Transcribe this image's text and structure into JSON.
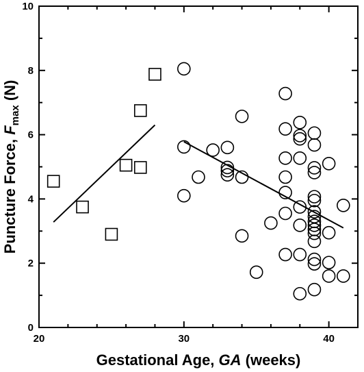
{
  "chart_data": {
    "type": "scatter",
    "title": "",
    "xlabel": {
      "prefix": "Gestational Age, ",
      "var": "GA",
      "suffix": " (weeks)"
    },
    "ylabel": {
      "prefix": "Puncture Force, ",
      "var": "F",
      "sub": "max",
      "suffix": " (N)"
    },
    "xlim": [
      20,
      42
    ],
    "ylim": [
      0,
      10
    ],
    "xticks": [
      20,
      30,
      40
    ],
    "yticks": [
      0,
      2,
      4,
      6,
      8,
      10
    ],
    "grid": false,
    "series": [
      {
        "marker": "square",
        "points": [
          [
            21,
            4.55
          ],
          [
            23,
            3.75
          ],
          [
            25,
            2.9
          ],
          [
            26,
            5.05
          ],
          [
            27,
            4.98
          ],
          [
            27,
            6.75
          ],
          [
            28,
            7.88
          ]
        ],
        "fit": [
          [
            21,
            3.28
          ],
          [
            28,
            6.3
          ]
        ]
      },
      {
        "marker": "circle",
        "points": [
          [
            30,
            8.05
          ],
          [
            30,
            5.62
          ],
          [
            30,
            4.1
          ],
          [
            31,
            4.68
          ],
          [
            32,
            5.52
          ],
          [
            33,
            5.6
          ],
          [
            33,
            4.98
          ],
          [
            33,
            4.88
          ],
          [
            33,
            4.75
          ],
          [
            34,
            6.57
          ],
          [
            34,
            4.68
          ],
          [
            34,
            2.85
          ],
          [
            35,
            1.72
          ],
          [
            36,
            3.25
          ],
          [
            37,
            7.28
          ],
          [
            37,
            6.18
          ],
          [
            37,
            5.27
          ],
          [
            37,
            4.68
          ],
          [
            37,
            4.2
          ],
          [
            37,
            3.55
          ],
          [
            37,
            2.27
          ],
          [
            38,
            6.38
          ],
          [
            38,
            5.97
          ],
          [
            38,
            5.87
          ],
          [
            38,
            5.27
          ],
          [
            38,
            3.75
          ],
          [
            38,
            3.18
          ],
          [
            38,
            2.27
          ],
          [
            38,
            1.05
          ],
          [
            39,
            6.05
          ],
          [
            39,
            5.68
          ],
          [
            39,
            4.97
          ],
          [
            39,
            4.82
          ],
          [
            39,
            4.07
          ],
          [
            39,
            3.95
          ],
          [
            39,
            3.6
          ],
          [
            39,
            3.45
          ],
          [
            39,
            3.3
          ],
          [
            39,
            3.18
          ],
          [
            39,
            3.05
          ],
          [
            39,
            2.93
          ],
          [
            39,
            2.68
          ],
          [
            39,
            2.12
          ],
          [
            39,
            1.98
          ],
          [
            39,
            1.18
          ],
          [
            40,
            5.1
          ],
          [
            40,
            2.95
          ],
          [
            40,
            2.02
          ],
          [
            40,
            1.6
          ],
          [
            41,
            3.8
          ],
          [
            41,
            1.6
          ]
        ],
        "fit": [
          [
            30,
            5.78
          ],
          [
            41,
            3.1
          ]
        ]
      }
    ]
  }
}
